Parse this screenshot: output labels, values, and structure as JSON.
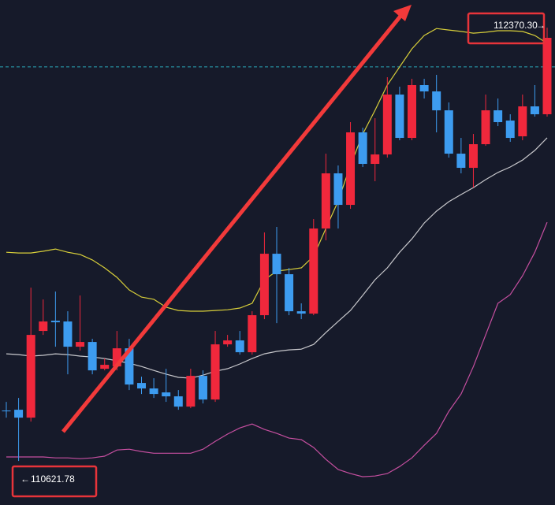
{
  "chart_data": {
    "type": "candlestick",
    "ylim": [
      110444,
      112482
    ],
    "up_color": "#f0283c",
    "down_color": "#3d9cf0",
    "open": [
      110825.2,
      110828.4,
      110796.6,
      111146.4,
      111187.7,
      111184.6,
      111082.8,
      111101.9,
      110993.8,
      111003.3,
      111076.4,
      110936.5,
      110914.3,
      110898.4,
      110882.5,
      110841.1,
      110965.1,
      110869.7,
      111092.3,
      111108.2,
      111060.5,
      111210.0,
      111458.0,
      111375.4,
      111225.9,
      111216.4,
      111559.8,
      111782.4,
      111655.2,
      111947.8,
      111820.6,
      111858.7,
      112100.4,
      111925.5,
      112138.6,
      112113.1,
      112036.8,
      111861.9,
      111804.7,
      111900.1,
      112036.8,
      111995.5,
      111931.9,
      112052.7,
      112020.9
    ],
    "high": [
      110860.2,
      110876.1,
      111321.3,
      111273.6,
      111305.4,
      111225.9,
      111289.5,
      111114.6,
      111035.1,
      111146.4,
      111114.6,
      110962.0,
      110955.6,
      110993.8,
      110907.9,
      110993.8,
      110987.4,
      111146.4,
      111130.5,
      111146.4,
      111225.9,
      111543.9,
      111566.2,
      111400.8,
      111257.7,
      111598.0,
      111861.9,
      111814.2,
      111989.1,
      111966.8,
      112005.0,
      112170.4,
      112132.2,
      112164.0,
      112164.0,
      112179.9,
      112068.6,
      111925.5,
      111941.4,
      112100.4,
      112084.5,
      112020.9,
      112100.4,
      112138.6,
      112370.3
    ],
    "low": [
      110796.6,
      110621.78,
      110780.7,
      111130.5,
      111082.8,
      110971.5,
      111066.9,
      110971.5,
      110987.4,
      110987.4,
      110907.9,
      110892.0,
      110876.1,
      110860.2,
      110828.4,
      110834.8,
      110853.8,
      110860.2,
      111082.8,
      111051.0,
      111051.0,
      111194.1,
      111178.2,
      111210.0,
      111194.1,
      111210.0,
      111512.1,
      111559.8,
      111639.3,
      111807.8,
      111750.6,
      111846.0,
      111916.0,
      111916.0,
      112084.5,
      111947.8,
      111846.0,
      111782.4,
      111725.2,
      111893.7,
      111973.2,
      111909.6,
      111916.0,
      112011.4,
      112011.4
    ],
    "close": [
      110822.0,
      110796.6,
      111130.5,
      111184.6,
      111181.4,
      111082.8,
      111101.9,
      110987.4,
      111009.7,
      111076.4,
      110930.2,
      110914.3,
      110892.0,
      110882.5,
      110841.1,
      110965.1,
      110869.7,
      111092.3,
      111108.2,
      111060.5,
      111210.0,
      111458.0,
      111375.4,
      111225.9,
      111216.4,
      111559.8,
      111782.4,
      111655.2,
      111947.8,
      111820.6,
      111858.7,
      112100.4,
      111925.5,
      112138.6,
      112113.1,
      112036.8,
      111861.9,
      111804.7,
      111900.1,
      112036.8,
      111989.1,
      111925.5,
      112052.7,
      112020.9,
      112329.4
    ],
    "bands": [
      {
        "color": "#d8cf3a",
        "values": [
          111464,
          111461,
          111461,
          111468,
          111477,
          111464,
          111455,
          111433,
          111401,
          111363,
          111312,
          111283,
          111274,
          111242,
          111229,
          111226,
          111226,
          111229,
          111232,
          111239,
          111258,
          111353,
          111388,
          111394,
          111401,
          111448,
          111560,
          111671,
          111814,
          111941,
          112037,
          112139,
          112212,
          112285,
          112339,
          112367,
          112361,
          112355,
          112348,
          112352,
          112358,
          112358,
          112355,
          112339,
          112307
        ]
      },
      {
        "color": "#c8c8cc",
        "values": [
          111054,
          111051,
          111045,
          111048,
          111054,
          111051,
          111045,
          111041,
          111035,
          111026,
          111016,
          111003,
          110987,
          110972,
          110959,
          110956,
          110968,
          110984,
          110994,
          111013,
          111035,
          111054,
          111064,
          111070,
          111073,
          111092,
          111140,
          111185,
          111229,
          111290,
          111353,
          111401,
          111464,
          111518,
          111582,
          111630,
          111668,
          111697,
          111725,
          111757,
          111786,
          111808,
          111836,
          111875,
          111926
        ]
      },
      {
        "color": "#c64fa0",
        "values": [
          110638,
          110638,
          110638,
          110638,
          110634,
          110634,
          110631,
          110634,
          110641,
          110666,
          110669,
          110660,
          110653,
          110653,
          110653,
          110653,
          110669,
          110701,
          110730,
          110755,
          110771,
          110749,
          110733,
          110714,
          110708,
          110676,
          110628,
          110587,
          110571,
          110558,
          110561,
          110571,
          110599,
          110634,
          110685,
          110733,
          110822,
          110892,
          111003,
          111130,
          111258,
          111293,
          111369,
          111464,
          111585
        ]
      }
    ],
    "price_line": {
      "value": 112212,
      "color": "#2aa7b8"
    },
    "max_label": "112370.30",
    "min_label": "110621.78"
  }
}
